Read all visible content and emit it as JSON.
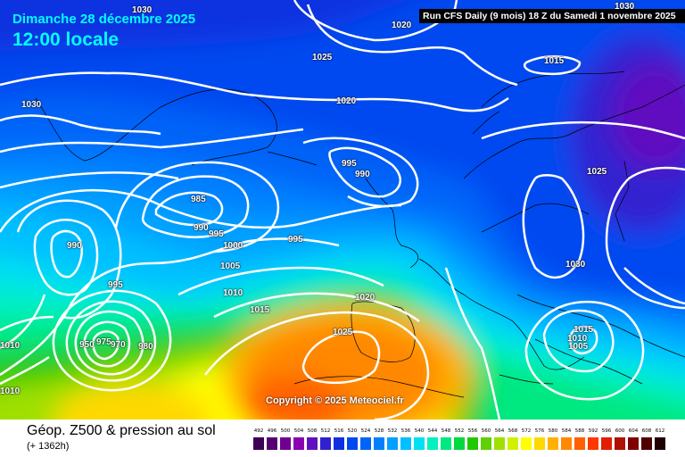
{
  "header": {
    "date": "Dimanche 28 décembre 2025",
    "time": "12:00 locale",
    "run_info": "Run CFS Daily (9 mois) 18 Z du Samedi 1 novembre 2025"
  },
  "copyright": "Copyright © 2025 Meteociel.fr",
  "footer": {
    "parameter": "Géop. Z500 & pression au sol",
    "lead_time": "(+ 1362h)"
  },
  "legend": {
    "values": [
      "492",
      "496",
      "500",
      "504",
      "508",
      "512",
      "516",
      "520",
      "524",
      "528",
      "532",
      "536",
      "540",
      "544",
      "548",
      "552",
      "556",
      "560",
      "564",
      "568",
      "572",
      "576",
      "580",
      "584",
      "588",
      "592",
      "596",
      "600",
      "604",
      "608",
      "612"
    ],
    "colors": [
      "#3c0054",
      "#550070",
      "#700090",
      "#8a00b0",
      "#6010c0",
      "#3020d0",
      "#1030e0",
      "#0048f0",
      "#0064f8",
      "#0080ff",
      "#00a0ff",
      "#00c0ff",
      "#00e0f0",
      "#00f0c0",
      "#00e880",
      "#00d840",
      "#20c800",
      "#60d000",
      "#a0e000",
      "#d0f000",
      "#ffff00",
      "#ffd800",
      "#ffb000",
      "#ff8800",
      "#ff6000",
      "#ff3800",
      "#e02000",
      "#b01000",
      "#800000",
      "#500000",
      "#200000"
    ]
  },
  "isobars": [
    "1030",
    "1020",
    "1025",
    "1015",
    "1030",
    "1020",
    "1030",
    "1025",
    "995",
    "990",
    "985",
    "990",
    "995",
    "1000",
    "1005",
    "995",
    "990",
    "995",
    "1010",
    "1015",
    "1020",
    "1025",
    "1030",
    "1015",
    "1010",
    "1005",
    "950",
    "975",
    "970",
    "980",
    "1010",
    "1010",
    "1010"
  ],
  "colors": {
    "background": "#ffffff",
    "title": "#00ffff",
    "run_box": "#000000",
    "isobar": "#ffffff"
  }
}
